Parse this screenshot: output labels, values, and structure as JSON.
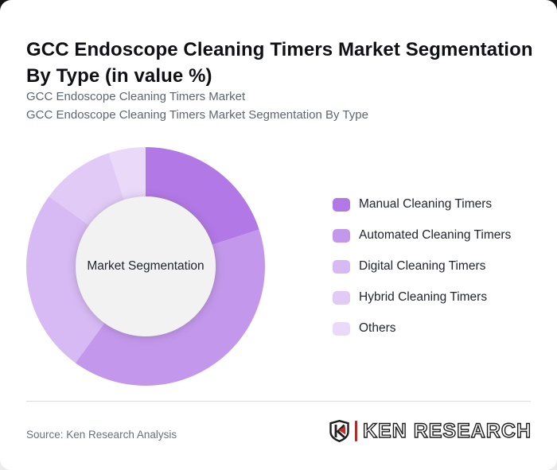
{
  "card": {
    "title": "GCC Endoscope Cleaning Timers Market Segmentation By Type (in value %)",
    "subtitle_line1": "GCC Endoscope Cleaning Timers Market",
    "subtitle_line2": "GCC Endoscope Cleaning Timers Market Segmentation By Type"
  },
  "chart_data": {
    "type": "pie",
    "variant": "donut",
    "title": "GCC Endoscope Cleaning Timers Market Segmentation By Type (in value %)",
    "center_label": "Market Segmentation",
    "categories": [
      "Manual Cleaning Timers",
      "Automated Cleaning Timers",
      "Digital Cleaning Timers",
      "Hybrid Cleaning Timers",
      "Others"
    ],
    "values": [
      20,
      40,
      25,
      10,
      5
    ],
    "unit": "%",
    "colors": [
      "#b278e5",
      "#c397ec",
      "#d7b9f3",
      "#e1cbf6",
      "#ead9f9"
    ],
    "start_angle_deg": 0,
    "direction": "clockwise",
    "legend_position": "right",
    "hole_color": "#f2f2f2"
  },
  "footer": {
    "source": "Source: Ken Research Analysis",
    "logo": {
      "brand": "KEN RESEARCH",
      "monogram": "K",
      "accent_red": "#c0302a",
      "outline_color": "#1d1d1d"
    }
  }
}
